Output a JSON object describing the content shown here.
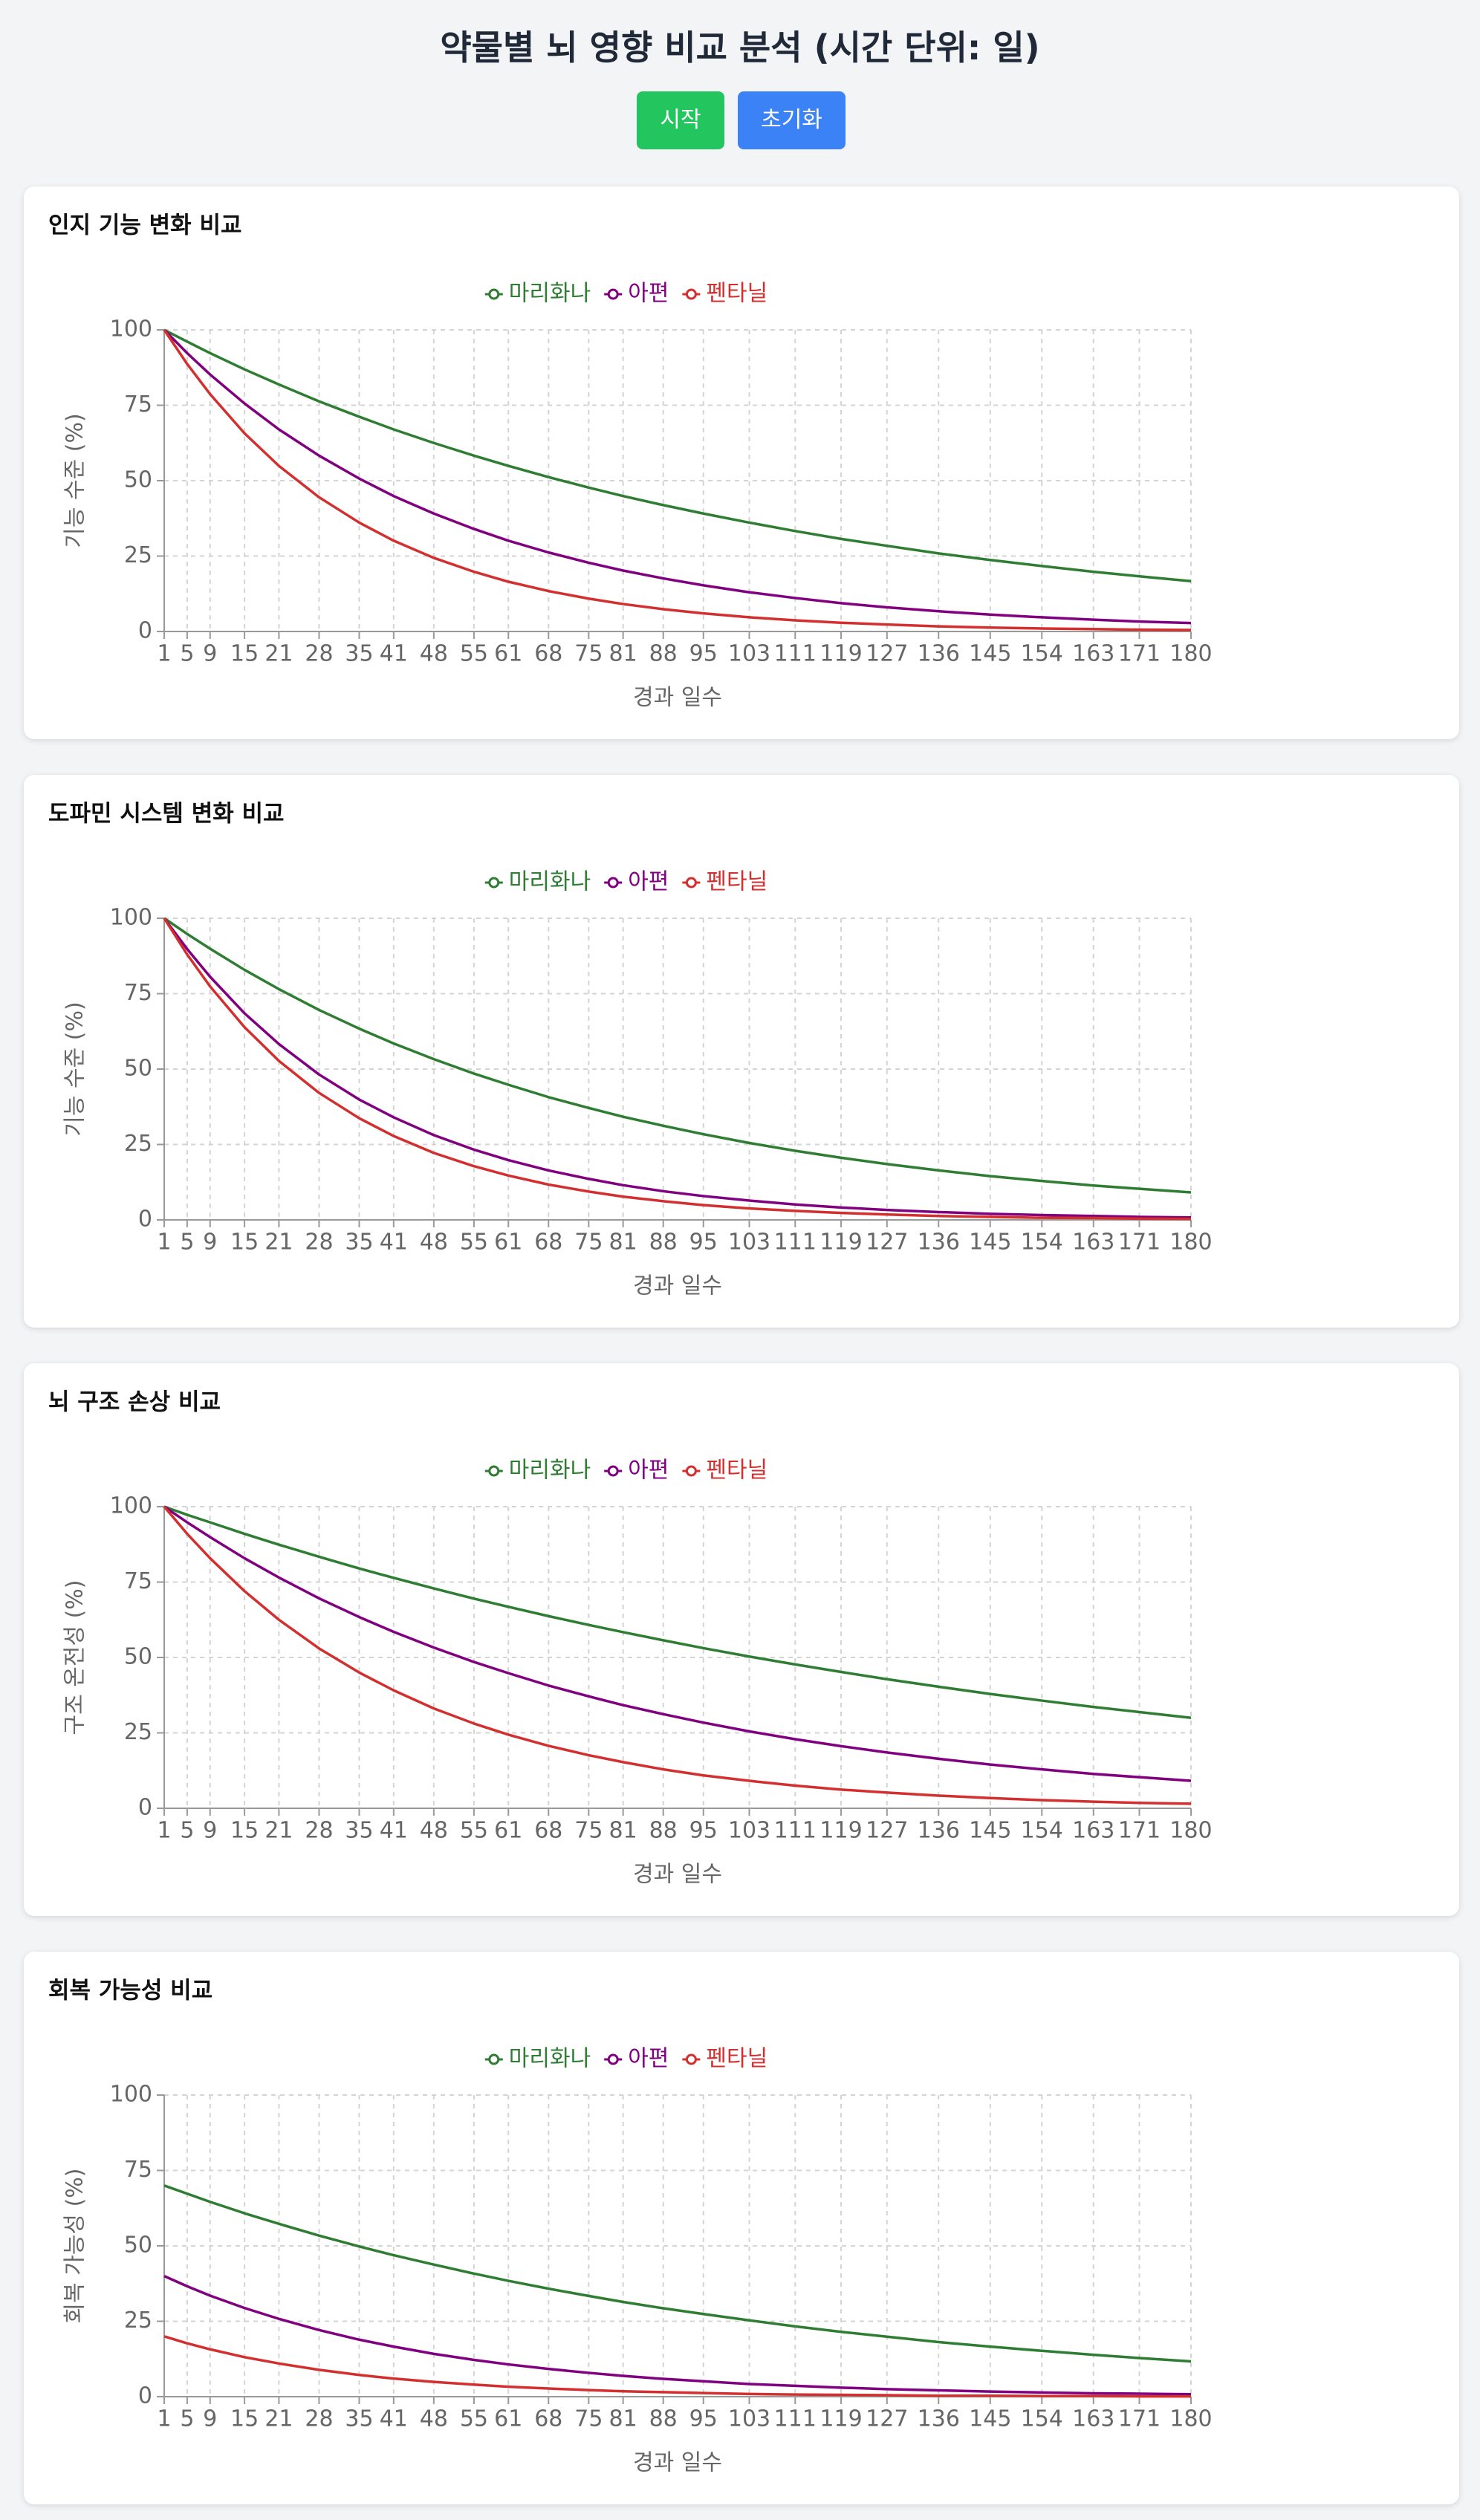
{
  "header": {
    "title": "약물별 뇌 영향 비교 분석 (시간 단위: 일)",
    "buttons": [
      "시작",
      "초기화"
    ]
  },
  "chart_data": [
    {
      "type": "line",
      "title": "인지 기능 변화 비교",
      "x_label": "경과 일수",
      "y_label": "기능 수준 (%)",
      "x": [
        1,
        5,
        9,
        15,
        21,
        28,
        35,
        41,
        48,
        55,
        61,
        68,
        75,
        81,
        88,
        95,
        103,
        111,
        119,
        127,
        136,
        145,
        154,
        163,
        171,
        180
      ],
      "xlim": [
        1,
        180
      ],
      "xticks": [
        1,
        5,
        9,
        15,
        21,
        28,
        35,
        41,
        48,
        55,
        61,
        68,
        75,
        81,
        88,
        95,
        103,
        111,
        119,
        127,
        136,
        145,
        154,
        163,
        171,
        180
      ],
      "ylim": [
        0,
        100
      ],
      "yticks": [
        0,
        25,
        50,
        75,
        100
      ],
      "grid": true,
      "legend": "top",
      "series": [
        {
          "name": "마리화나",
          "color": "#2e7d32",
          "values": [
            100,
            96.1,
            92.3,
            86.9,
            81.9,
            76.3,
            71.2,
            67.0,
            62.5,
            58.3,
            54.9,
            51.2,
            47.7,
            44.9,
            41.9,
            39.1,
            36.1,
            33.3,
            30.7,
            28.4,
            25.9,
            23.7,
            21.7,
            19.8,
            18.3,
            16.7
          ]
        },
        {
          "name": "아편",
          "color": "#800080",
          "values": [
            100,
            92.3,
            85.2,
            75.6,
            67.0,
            58.3,
            50.7,
            44.9,
            39.1,
            34.0,
            30.1,
            26.2,
            22.8,
            20.2,
            17.6,
            15.3,
            13.0,
            11.1,
            9.4,
            8.0,
            6.7,
            5.6,
            4.7,
            3.9,
            3.3,
            2.8
          ]
        },
        {
          "name": "펜타닐",
          "color": "#d32f2f",
          "values": [
            100,
            88.7,
            78.7,
            65.7,
            54.9,
            44.5,
            36.1,
            30.1,
            24.4,
            19.8,
            16.5,
            13.4,
            10.9,
            9.1,
            7.4,
            6.0,
            4.7,
            3.7,
            2.9,
            2.3,
            1.7,
            1.3,
            1.0,
            0.8,
            0.6,
            0.5
          ]
        }
      ]
    },
    {
      "type": "line",
      "title": "도파민 시스템 변화 비교",
      "x_label": "경과 일수",
      "y_label": "기능 수준 (%)",
      "x": [
        1,
        5,
        9,
        15,
        21,
        28,
        35,
        41,
        48,
        55,
        61,
        68,
        75,
        81,
        88,
        95,
        103,
        111,
        119,
        127,
        136,
        145,
        154,
        163,
        171,
        180
      ],
      "xlim": [
        1,
        180
      ],
      "xticks": [
        1,
        5,
        9,
        15,
        21,
        28,
        35,
        41,
        48,
        55,
        61,
        68,
        75,
        81,
        88,
        95,
        103,
        111,
        119,
        127,
        136,
        145,
        154,
        163,
        171,
        180
      ],
      "ylim": [
        0,
        100
      ],
      "yticks": [
        0,
        25,
        50,
        75,
        100
      ],
      "grid": true,
      "legend": "top",
      "series": [
        {
          "name": "마리화나",
          "color": "#2e7d32",
          "values": [
            100,
            94.8,
            89.9,
            82.9,
            76.5,
            69.6,
            63.4,
            58.5,
            53.3,
            48.5,
            44.8,
            40.7,
            37.1,
            34.2,
            31.2,
            28.4,
            25.5,
            22.9,
            20.6,
            18.5,
            16.4,
            14.5,
            12.9,
            11.4,
            10.3,
            9.1
          ]
        },
        {
          "name": "아편",
          "color": "#800080",
          "values": [
            100,
            89.8,
            80.6,
            68.5,
            58.3,
            48.2,
            39.9,
            34.0,
            28.1,
            23.3,
            19.8,
            16.4,
            13.6,
            11.5,
            9.5,
            7.9,
            6.4,
            5.1,
            4.1,
            3.3,
            2.6,
            2.0,
            1.6,
            1.3,
            1.0,
            0.8
          ]
        },
        {
          "name": "펜타닐",
          "color": "#d32f2f",
          "values": [
            100,
            88.0,
            77.4,
            63.9,
            52.7,
            42.1,
            33.7,
            27.8,
            22.2,
            17.8,
            14.7,
            11.7,
            9.4,
            7.7,
            6.2,
            4.9,
            3.8,
            3.0,
            2.3,
            1.8,
            1.3,
            1.0,
            0.7,
            0.6,
            0.4,
            0.3
          ]
        }
      ]
    },
    {
      "type": "line",
      "title": "뇌 구조 손상 비교",
      "x_label": "경과 일수",
      "y_label": "구조 온전성 (%)",
      "x": [
        1,
        5,
        9,
        15,
        21,
        28,
        35,
        41,
        48,
        55,
        61,
        68,
        75,
        81,
        88,
        95,
        103,
        111,
        119,
        127,
        136,
        145,
        154,
        163,
        171,
        180
      ],
      "xlim": [
        1,
        180
      ],
      "xticks": [
        1,
        5,
        9,
        15,
        21,
        28,
        35,
        41,
        48,
        55,
        61,
        68,
        75,
        81,
        88,
        95,
        103,
        111,
        119,
        127,
        136,
        145,
        154,
        163,
        171,
        180
      ],
      "ylim": [
        0,
        100
      ],
      "yticks": [
        0,
        25,
        50,
        75,
        100
      ],
      "grid": true,
      "legend": "top",
      "series": [
        {
          "name": "마리화나",
          "color": "#2e7d32",
          "values": [
            100,
            97.3,
            94.8,
            91.0,
            87.4,
            83.4,
            79.5,
            76.4,
            72.9,
            69.5,
            66.8,
            63.7,
            60.8,
            58.4,
            55.7,
            53.1,
            50.3,
            47.7,
            45.2,
            42.8,
            40.3,
            37.9,
            35.7,
            33.6,
            31.9,
            30.0
          ]
        },
        {
          "name": "아편",
          "color": "#800080",
          "values": [
            100,
            94.8,
            89.9,
            82.9,
            76.5,
            69.6,
            63.4,
            58.5,
            53.3,
            48.5,
            44.8,
            40.7,
            37.1,
            34.2,
            31.2,
            28.4,
            25.5,
            22.9,
            20.6,
            18.5,
            16.4,
            14.5,
            12.9,
            11.4,
            10.3,
            9.1
          ]
        },
        {
          "name": "펜타닐",
          "color": "#d32f2f",
          "values": [
            100,
            91.0,
            82.9,
            72.0,
            62.5,
            53.0,
            45.0,
            39.1,
            33.1,
            28.1,
            24.4,
            20.7,
            17.6,
            15.3,
            12.9,
            10.9,
            9.1,
            7.5,
            6.2,
            5.2,
            4.2,
            3.4,
            2.7,
            2.2,
            1.8,
            1.5
          ]
        }
      ]
    },
    {
      "type": "line",
      "title": "회복 가능성 비교",
      "x_label": "경과 일수",
      "y_label": "회복 가능성 (%)",
      "x": [
        1,
        5,
        9,
        15,
        21,
        28,
        35,
        41,
        48,
        55,
        61,
        68,
        75,
        81,
        88,
        95,
        103,
        111,
        119,
        127,
        136,
        145,
        154,
        163,
        171,
        180
      ],
      "xlim": [
        1,
        180
      ],
      "xticks": [
        1,
        5,
        9,
        15,
        21,
        28,
        35,
        41,
        48,
        55,
        61,
        68,
        75,
        81,
        88,
        95,
        103,
        111,
        119,
        127,
        136,
        145,
        154,
        163,
        171,
        180
      ],
      "ylim": [
        0,
        100
      ],
      "yticks": [
        0,
        25,
        50,
        75,
        100
      ],
      "grid": true,
      "legend": "top",
      "series": [
        {
          "name": "마리화나",
          "color": "#2e7d32",
          "values": [
            70,
            67.3,
            64.6,
            60.8,
            57.3,
            53.4,
            49.8,
            46.9,
            43.8,
            40.8,
            38.4,
            35.8,
            33.4,
            31.4,
            29.3,
            27.4,
            25.3,
            23.3,
            21.5,
            19.9,
            18.1,
            16.6,
            15.2,
            13.9,
            12.8,
            11.7
          ]
        },
        {
          "name": "아편",
          "color": "#800080",
          "values": [
            40,
            36.6,
            33.5,
            29.4,
            25.8,
            22.1,
            18.9,
            16.6,
            14.2,
            12.2,
            10.7,
            9.2,
            7.9,
            6.9,
            5.9,
            5.1,
            4.2,
            3.6,
            3.0,
            2.5,
            2.1,
            1.7,
            1.4,
            1.1,
            1.0,
            0.8
          ]
        },
        {
          "name": "펜타닐",
          "color": "#d32f2f",
          "values": [
            20,
            17.7,
            15.7,
            13.1,
            11.0,
            8.9,
            7.2,
            6.0,
            4.9,
            4.0,
            3.3,
            2.7,
            2.2,
            1.8,
            1.5,
            1.2,
            0.9,
            0.7,
            0.6,
            0.5,
            0.3,
            0.3,
            0.2,
            0.2,
            0.1,
            0.1
          ]
        }
      ]
    }
  ]
}
